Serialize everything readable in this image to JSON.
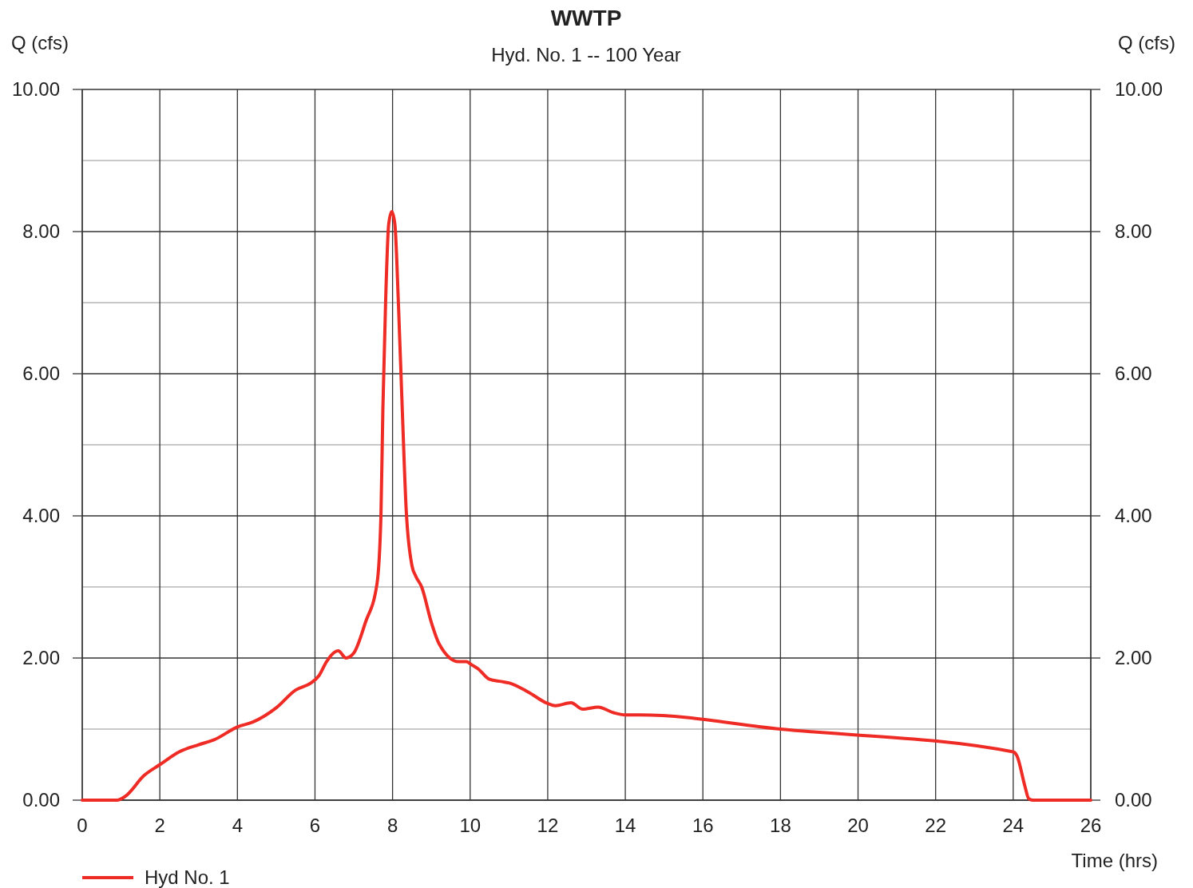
{
  "chart_data": {
    "type": "line",
    "title": "WWTP",
    "subtitle": "Hyd. No. 1 -- 100 Year",
    "xlabel": "Time (hrs)",
    "ylabel": "Q (cfs)",
    "y2label": "Q (cfs)",
    "x": [
      0,
      0.9,
      1.1,
      1.6,
      2,
      2.5,
      3,
      3.4,
      4,
      4.4,
      5,
      5.5,
      5.9,
      6.1,
      6.3,
      6.5,
      6.6,
      6.8,
      7.0,
      7.3,
      7.6,
      7.7,
      7.75,
      7.82,
      7.9,
      7.98,
      8.06,
      8.15,
      8.25,
      8.35,
      8.5,
      8.6,
      8.75,
      9.0,
      9.2,
      9.7,
      9.9,
      10.05,
      10.2,
      10.5,
      10.8,
      11,
      11.5,
      12,
      12.2,
      12.6,
      12.9,
      13.3,
      13.7,
      14,
      14.4,
      18,
      24,
      24.1,
      24.3,
      24.4,
      24.5,
      26
    ],
    "series": [
      {
        "name": "Hyd No. 1",
        "color": "#ee2b24",
        "values": [
          0,
          0,
          0.05,
          0.35,
          0.5,
          0.68,
          0.78,
          0.85,
          1.03,
          1.1,
          1.3,
          1.55,
          1.65,
          1.75,
          1.95,
          2.08,
          2.1,
          2.0,
          2.07,
          2.5,
          3.05,
          4.0,
          5.5,
          7.0,
          8.1,
          8.28,
          8.1,
          7.0,
          5.5,
          4.1,
          3.3,
          3.15,
          3.0,
          2.5,
          2.2,
          1.95,
          1.95,
          1.9,
          1.85,
          1.7,
          1.67,
          1.65,
          1.52,
          1.36,
          1.33,
          1.37,
          1.28,
          1.31,
          1.23,
          1.2,
          1.2,
          1.0,
          0.68,
          0.62,
          0.2,
          0.02,
          0,
          0
        ]
      }
    ],
    "xlim": [
      0,
      26
    ],
    "xticks": [
      0,
      2,
      4,
      6,
      8,
      10,
      12,
      14,
      16,
      18,
      20,
      22,
      24,
      26
    ],
    "ylim": [
      0,
      10
    ],
    "yticks": [
      {
        "value": 0,
        "label": "0.00"
      },
      {
        "value": 1,
        "label": null
      },
      {
        "value": 2,
        "label": "2.00"
      },
      {
        "value": 3,
        "label": null
      },
      {
        "value": 4,
        "label": "4.00"
      },
      {
        "value": 5,
        "label": null
      },
      {
        "value": 6,
        "label": "6.00"
      },
      {
        "value": 7,
        "label": null
      },
      {
        "value": 8,
        "label": "8.00"
      },
      {
        "value": 9,
        "label": null
      },
      {
        "value": 10,
        "label": "10.00"
      }
    ],
    "y2lim": [
      0,
      10
    ],
    "y2ticks": [
      {
        "value": 0,
        "label": "0.00"
      },
      {
        "value": 2,
        "label": "2.00"
      },
      {
        "value": 4,
        "label": "4.00"
      },
      {
        "value": 6,
        "label": "6.00"
      },
      {
        "value": 8,
        "label": "8.00"
      },
      {
        "value": 10,
        "label": "10.00"
      }
    ],
    "grid": true,
    "legend": "bottom left",
    "line_style": "solid"
  }
}
